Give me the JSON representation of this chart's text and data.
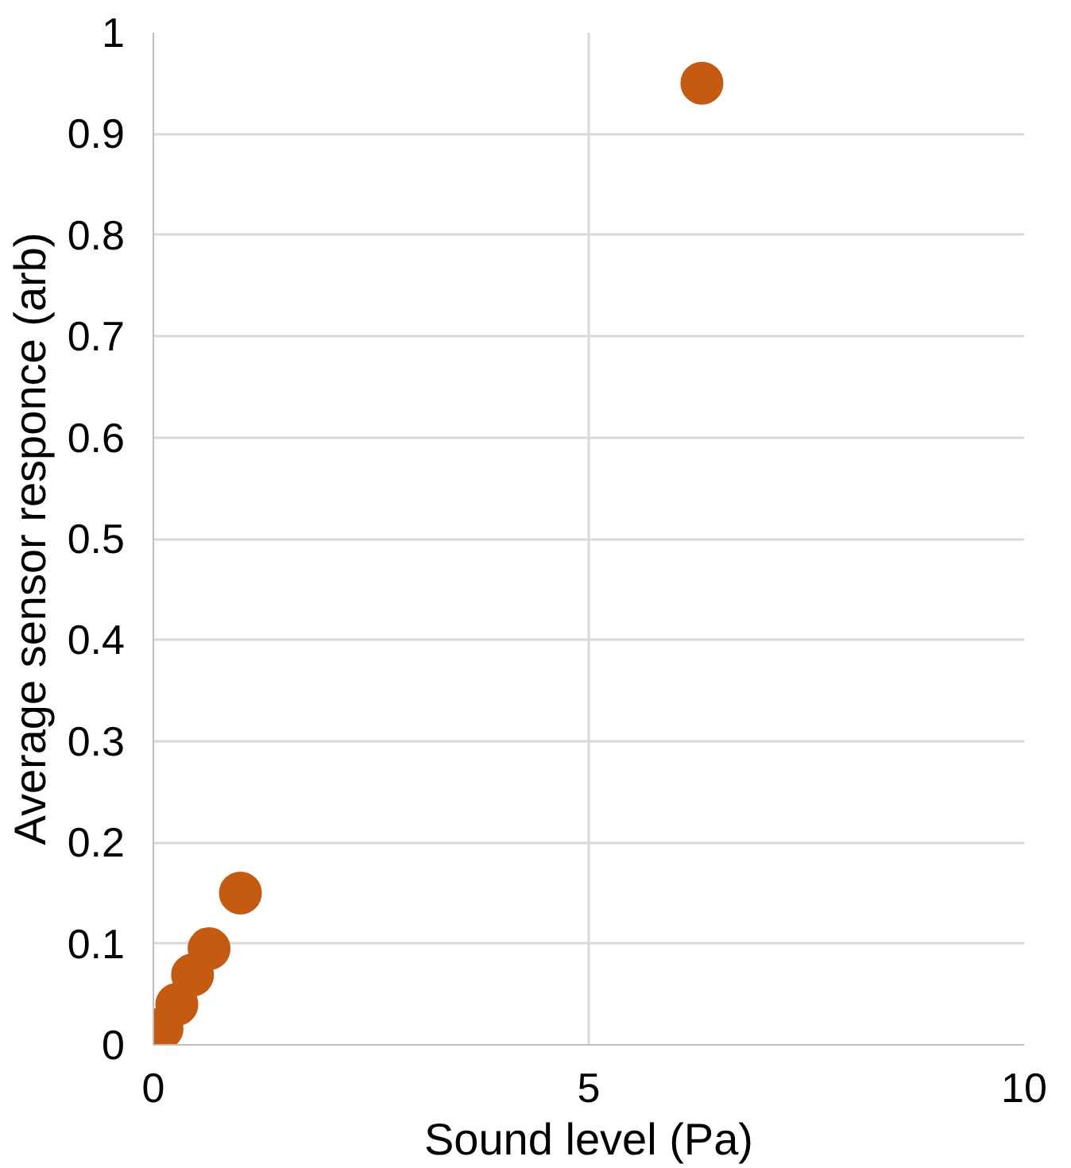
{
  "chart_data": {
    "type": "scatter",
    "xlabel": "Sound level (Pa)",
    "ylabel": "Average sensor responce (arb)",
    "x": [
      0.1,
      0.27,
      0.45,
      0.64,
      1.0,
      6.3
    ],
    "series": [
      {
        "color": "#c55a11",
        "values": [
          0.016,
          0.04,
          0.069,
          0.095,
          0.15,
          0.95
        ]
      }
    ],
    "xlim": [
      0,
      10
    ],
    "xticks": [
      0,
      5,
      10
    ],
    "ylim": [
      0,
      1
    ],
    "yticks": [
      0,
      0.1,
      0.2,
      0.3,
      0.4,
      0.5,
      0.6,
      0.7,
      0.8,
      0.9,
      1
    ],
    "grid": true,
    "marker": "circle"
  }
}
